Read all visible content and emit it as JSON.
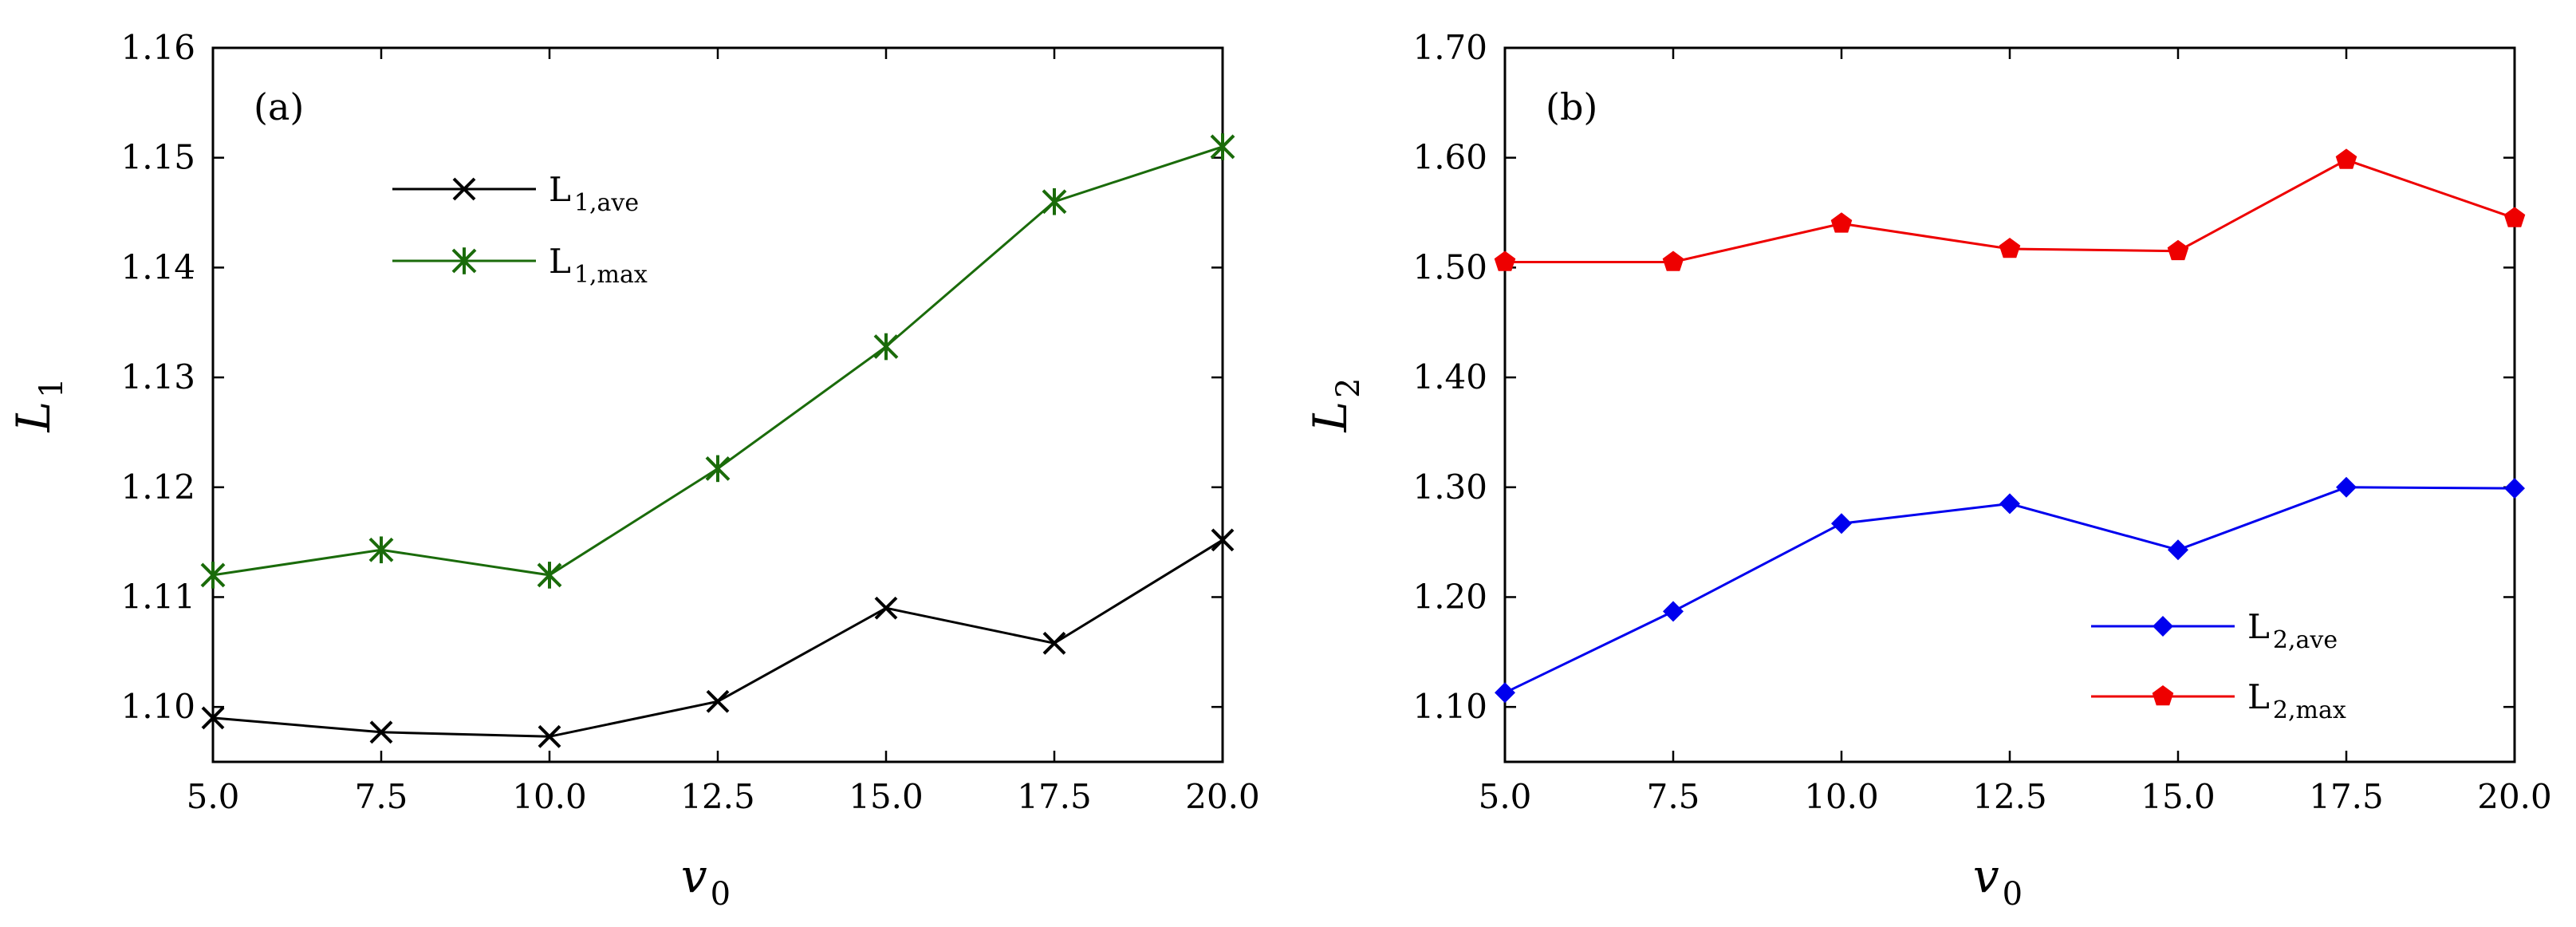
{
  "chart_data": [
    {
      "type": "line",
      "panel_label": "(a)",
      "ylabel": "L",
      "ylabel_sub": "1",
      "xlabel": "v",
      "xlabel_sub": "0",
      "xlim": [
        5.0,
        20.0
      ],
      "ylim": [
        1.095,
        1.16
      ],
      "x_ticks": [
        "5.0",
        "7.5",
        "10.0",
        "12.5",
        "15.0",
        "17.5",
        "20.0"
      ],
      "y_ticks": [
        "1.10",
        "1.11",
        "1.12",
        "1.13",
        "1.14",
        "1.15",
        "1.16"
      ],
      "legend_position": "upper-left",
      "x": [
        5.0,
        7.5,
        10.0,
        12.5,
        15.0,
        17.5,
        20.0
      ],
      "series": [
        {
          "name": "L",
          "name_sub": "1,ave",
          "color": "#000000",
          "marker": "x",
          "values": [
            1.099,
            1.0977,
            1.0973,
            1.1005,
            1.109,
            1.1058,
            1.1152
          ]
        },
        {
          "name": "L",
          "name_sub": "1,max",
          "color": "#1a6b0a",
          "marker": "asterisk",
          "values": [
            1.112,
            1.1143,
            1.112,
            1.1217,
            1.1328,
            1.146,
            1.151
          ]
        }
      ]
    },
    {
      "type": "line",
      "panel_label": "(b)",
      "ylabel": "L",
      "ylabel_sub": "2",
      "xlabel": "v",
      "xlabel_sub": "0",
      "xlim": [
        5.0,
        20.0
      ],
      "ylim": [
        1.05,
        1.7
      ],
      "x_ticks": [
        "5.0",
        "7.5",
        "10.0",
        "12.5",
        "15.0",
        "17.5",
        "20.0"
      ],
      "y_ticks": [
        "1.10",
        "1.20",
        "1.30",
        "1.40",
        "1.50",
        "1.60",
        "1.70"
      ],
      "legend_position": "lower-right",
      "x": [
        5.0,
        7.5,
        10.0,
        12.5,
        15.0,
        17.5,
        20.0
      ],
      "series": [
        {
          "name": "L",
          "name_sub": "2,ave",
          "color": "#0000ee",
          "marker": "diamond",
          "values": [
            1.113,
            1.187,
            1.267,
            1.285,
            1.243,
            1.3,
            1.299
          ]
        },
        {
          "name": "L",
          "name_sub": "2,max",
          "color": "#ee0000",
          "marker": "pentagon",
          "values": [
            1.505,
            1.505,
            1.54,
            1.517,
            1.515,
            1.598,
            1.545
          ]
        }
      ]
    }
  ]
}
